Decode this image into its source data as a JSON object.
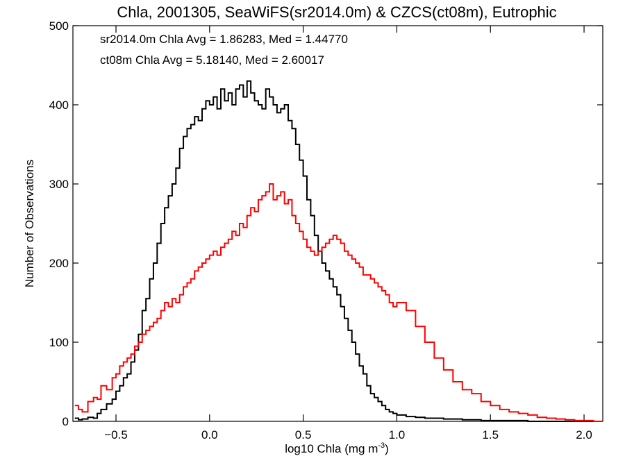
{
  "chart_data": {
    "type": "line",
    "title": "Chla, 2001305, SeaWiFS(sr2014.0m) & CZCS(ct08m), Eutrophic",
    "xlabel_main": "log10 Chla (mg m",
    "xlabel_exp": "-3",
    "xlabel_close": ")",
    "ylabel": "Number of Observations",
    "xlim": [
      -0.73,
      2.1
    ],
    "ylim": [
      0,
      500
    ],
    "x_ticks": [
      -0.5,
      0.0,
      0.5,
      1.0,
      1.5,
      2.0
    ],
    "x_tick_labels": [
      "−0.5",
      "0.0",
      "0.5",
      "1.0",
      "1.5",
      "2.0"
    ],
    "y_ticks": [
      0,
      100,
      200,
      300,
      400,
      500
    ],
    "y_tick_labels": [
      "0",
      "100",
      "200",
      "300",
      "400",
      "500"
    ],
    "grid": false,
    "legend_position": "top-left",
    "series": [
      {
        "name": "sr2014.0m Chla Avg = 1.86283, Med = 1.44770",
        "color": "#000000",
        "x": [
          -0.72,
          -0.7,
          -0.68,
          -0.65,
          -0.62,
          -0.6,
          -0.58,
          -0.55,
          -0.52,
          -0.5,
          -0.48,
          -0.46,
          -0.44,
          -0.42,
          -0.4,
          -0.38,
          -0.36,
          -0.34,
          -0.32,
          -0.3,
          -0.28,
          -0.26,
          -0.24,
          -0.22,
          -0.2,
          -0.18,
          -0.16,
          -0.14,
          -0.12,
          -0.1,
          -0.08,
          -0.06,
          -0.04,
          -0.02,
          0.0,
          0.02,
          0.04,
          0.06,
          0.08,
          0.1,
          0.12,
          0.14,
          0.16,
          0.18,
          0.2,
          0.22,
          0.24,
          0.26,
          0.28,
          0.3,
          0.32,
          0.34,
          0.36,
          0.38,
          0.4,
          0.42,
          0.44,
          0.46,
          0.48,
          0.5,
          0.52,
          0.54,
          0.56,
          0.58,
          0.6,
          0.62,
          0.64,
          0.66,
          0.68,
          0.7,
          0.72,
          0.74,
          0.76,
          0.78,
          0.8,
          0.82,
          0.84,
          0.86,
          0.88,
          0.9,
          0.92,
          0.94,
          0.96,
          0.98,
          1.0,
          1.05,
          1.1,
          1.15,
          1.2,
          1.25,
          1.3,
          1.35,
          1.4,
          1.45,
          1.5,
          1.55,
          1.6,
          1.65,
          1.7,
          1.75,
          1.8,
          1.85,
          1.9,
          1.95,
          2.0,
          2.05,
          2.1
        ],
        "y": [
          4,
          2,
          3,
          5,
          4,
          10,
          15,
          22,
          28,
          38,
          45,
          55,
          60,
          75,
          90,
          110,
          140,
          155,
          180,
          200,
          225,
          250,
          270,
          285,
          300,
          320,
          345,
          360,
          370,
          375,
          385,
          380,
          395,
          405,
          400,
          410,
          395,
          420,
          405,
          415,
          400,
          420,
          425,
          410,
          430,
          415,
          405,
          400,
          395,
          420,
          410,
          400,
          390,
          395,
          400,
          380,
          370,
          350,
          330,
          310,
          280,
          260,
          235,
          215,
          200,
          190,
          180,
          170,
          160,
          145,
          130,
          115,
          100,
          85,
          70,
          60,
          45,
          35,
          30,
          25,
          20,
          15,
          12,
          10,
          8,
          6,
          5,
          4,
          4,
          3,
          3,
          2,
          2,
          1,
          1,
          1,
          1,
          1,
          0,
          0,
          0,
          0,
          0,
          0,
          0,
          0,
          0
        ]
      },
      {
        "name": "ct08m Chla Avg = 5.18140, Med = 2.60017",
        "color": "#ff0000",
        "x": [
          -0.72,
          -0.7,
          -0.68,
          -0.65,
          -0.62,
          -0.6,
          -0.58,
          -0.55,
          -0.52,
          -0.5,
          -0.48,
          -0.46,
          -0.44,
          -0.42,
          -0.4,
          -0.38,
          -0.36,
          -0.34,
          -0.32,
          -0.3,
          -0.28,
          -0.26,
          -0.24,
          -0.22,
          -0.2,
          -0.18,
          -0.16,
          -0.14,
          -0.12,
          -0.1,
          -0.08,
          -0.06,
          -0.04,
          -0.02,
          0.0,
          0.02,
          0.04,
          0.06,
          0.08,
          0.1,
          0.12,
          0.14,
          0.16,
          0.18,
          0.2,
          0.22,
          0.24,
          0.26,
          0.28,
          0.3,
          0.32,
          0.34,
          0.36,
          0.38,
          0.4,
          0.42,
          0.44,
          0.46,
          0.48,
          0.5,
          0.52,
          0.54,
          0.56,
          0.58,
          0.6,
          0.62,
          0.64,
          0.66,
          0.68,
          0.7,
          0.72,
          0.74,
          0.76,
          0.78,
          0.8,
          0.82,
          0.84,
          0.86,
          0.88,
          0.9,
          0.92,
          0.94,
          0.96,
          0.98,
          1.0,
          1.05,
          1.1,
          1.15,
          1.2,
          1.25,
          1.3,
          1.35,
          1.4,
          1.45,
          1.5,
          1.55,
          1.6,
          1.65,
          1.7,
          1.75,
          1.8,
          1.85,
          1.9,
          1.95,
          2.0,
          2.05,
          2.1
        ],
        "y": [
          20,
          15,
          12,
          25,
          30,
          28,
          45,
          40,
          55,
          60,
          70,
          75,
          80,
          85,
          95,
          100,
          110,
          115,
          120,
          125,
          130,
          140,
          150,
          145,
          155,
          150,
          160,
          170,
          175,
          180,
          190,
          195,
          200,
          205,
          210,
          215,
          210,
          220,
          225,
          230,
          240,
          235,
          250,
          245,
          260,
          270,
          265,
          280,
          285,
          290,
          300,
          280,
          285,
          290,
          275,
          280,
          260,
          250,
          240,
          230,
          220,
          215,
          210,
          215,
          220,
          225,
          230,
          235,
          230,
          225,
          215,
          210,
          205,
          200,
          195,
          185,
          185,
          180,
          175,
          170,
          165,
          160,
          150,
          145,
          150,
          140,
          120,
          100,
          80,
          65,
          50,
          40,
          35,
          25,
          20,
          15,
          12,
          10,
          8,
          5,
          4,
          3,
          2,
          1,
          1,
          0,
          0
        ]
      }
    ]
  }
}
